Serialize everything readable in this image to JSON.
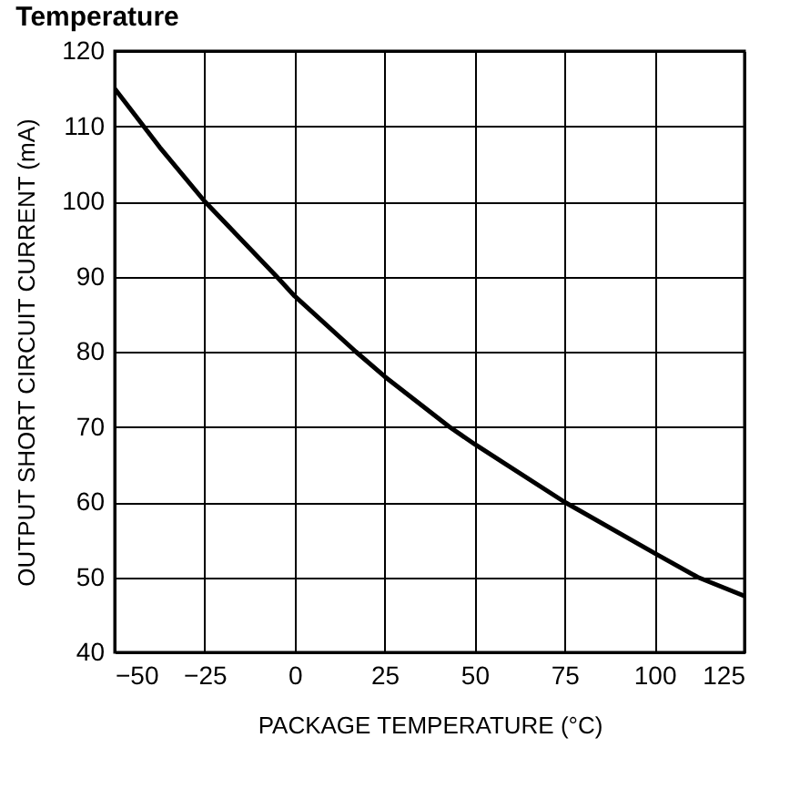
{
  "chart_data": {
    "type": "line",
    "title": "Temperature",
    "xlabel": "PACKAGE TEMPERATURE (°C)",
    "ylabel": "OUTPUT SHORT CIRCUIT CURRENT (mA)",
    "x": [
      -50,
      -37.5,
      -25,
      -5,
      0,
      17,
      25,
      43,
      50,
      75,
      100,
      112,
      125
    ],
    "series": [
      {
        "color": "#000000",
        "values": [
          115,
          107.2,
          100,
          90,
          87.4,
          80,
          76.7,
          70,
          67.7,
          60,
          53.2,
          50,
          47.5
        ]
      }
    ],
    "xlim": [
      -50,
      125
    ],
    "xticks": [
      {
        "value": -50,
        "label": "−50"
      },
      {
        "value": -25,
        "label": "−25"
      },
      0,
      25,
      50,
      75,
      100,
      125
    ],
    "ylim": [
      40,
      120
    ],
    "yticks": [
      40,
      50,
      60,
      70,
      80,
      90,
      100,
      110,
      120
    ],
    "grid": true,
    "legend": false,
    "marker": "none",
    "line_style": "solid"
  }
}
